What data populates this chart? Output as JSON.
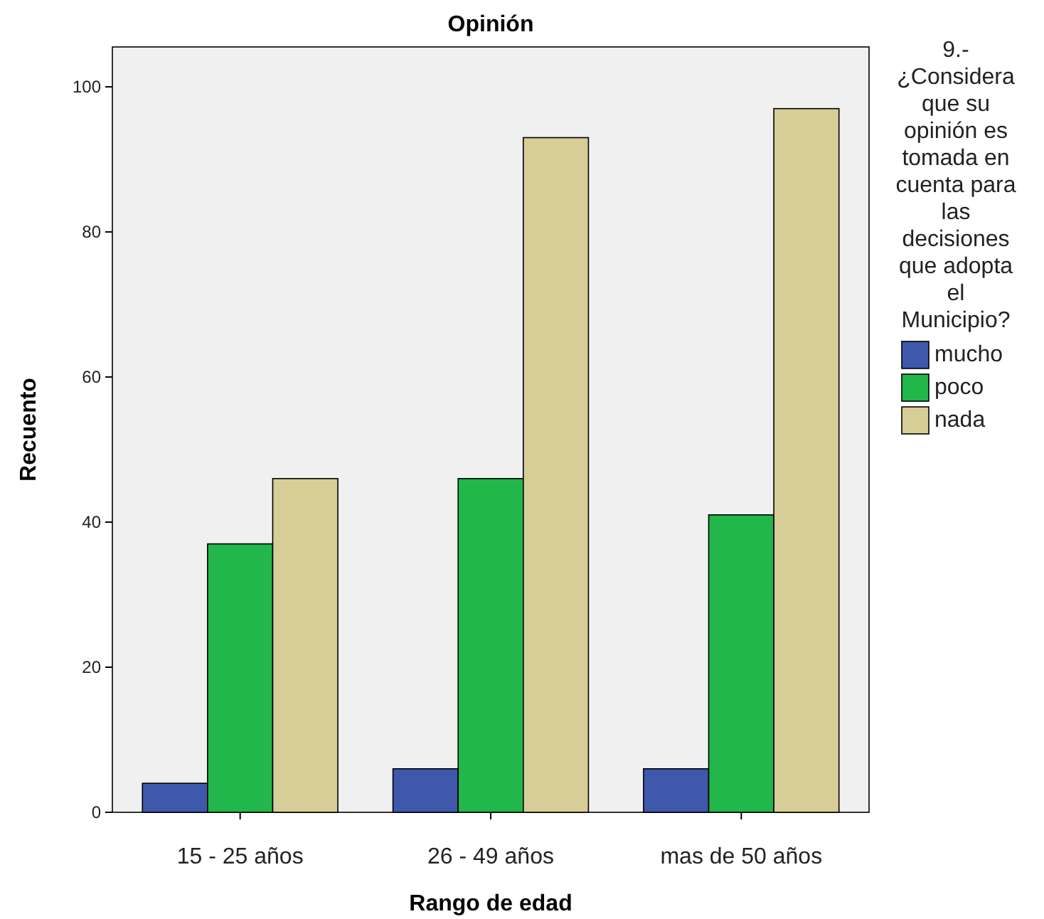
{
  "chart_data": {
    "type": "bar",
    "title": "Opinión",
    "xlabel": "Rango de edad",
    "ylabel": "Recuento",
    "legend_title": "9.- ¿Considera que su opinión es tomada en cuenta para las decisiones que adopta el Municipio?",
    "categories": [
      "15 - 25 años",
      "26 - 49 años",
      "mas de 50 años"
    ],
    "series": [
      {
        "name": "mucho",
        "color": "#3e58ac",
        "values": [
          4,
          6,
          6
        ]
      },
      {
        "name": "poco",
        "color": "#22b74b",
        "values": [
          37,
          46,
          41
        ]
      },
      {
        "name": "nada",
        "color": "#d6cd97",
        "values": [
          46,
          93,
          97
        ]
      }
    ],
    "ylim": [
      0,
      105.5
    ],
    "yticks": [
      0,
      20,
      40,
      60,
      80,
      100
    ],
    "grid": false,
    "legend": "right"
  }
}
